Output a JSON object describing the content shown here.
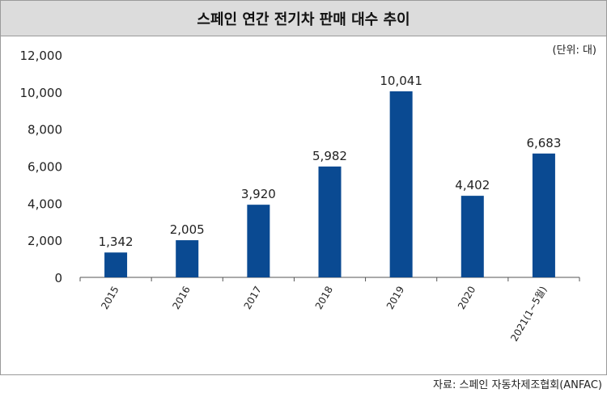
{
  "title": "스페인 연간 전기차 판매 대수 추이",
  "unit_note": "(단위: 대)",
  "source": "자료: 스페인 자동차제조협회(ANFAC)",
  "colors": {
    "bar": "#0a4a92",
    "axis": "#555555",
    "title_bg": "#dcdcdc"
  },
  "chart_data": {
    "type": "bar",
    "title": "스페인 연간 전기차 판매 대수 추이",
    "categories": [
      "2015",
      "2016",
      "2017",
      "2018",
      "2019",
      "2020",
      "2021(1~5월)"
    ],
    "values": [
      1342,
      2005,
      3920,
      5982,
      10041,
      4402,
      6683
    ],
    "value_labels": [
      "1,342",
      "2,005",
      "3,920",
      "5,982",
      "10,041",
      "4,402",
      "6,683"
    ],
    "yticks": [
      "0",
      "2,000",
      "4,000",
      "6,000",
      "8,000",
      "10,000",
      "12,000"
    ],
    "ylim": [
      0,
      12000
    ],
    "xlabel": "",
    "ylabel": "",
    "grid": false,
    "legend": "none"
  }
}
